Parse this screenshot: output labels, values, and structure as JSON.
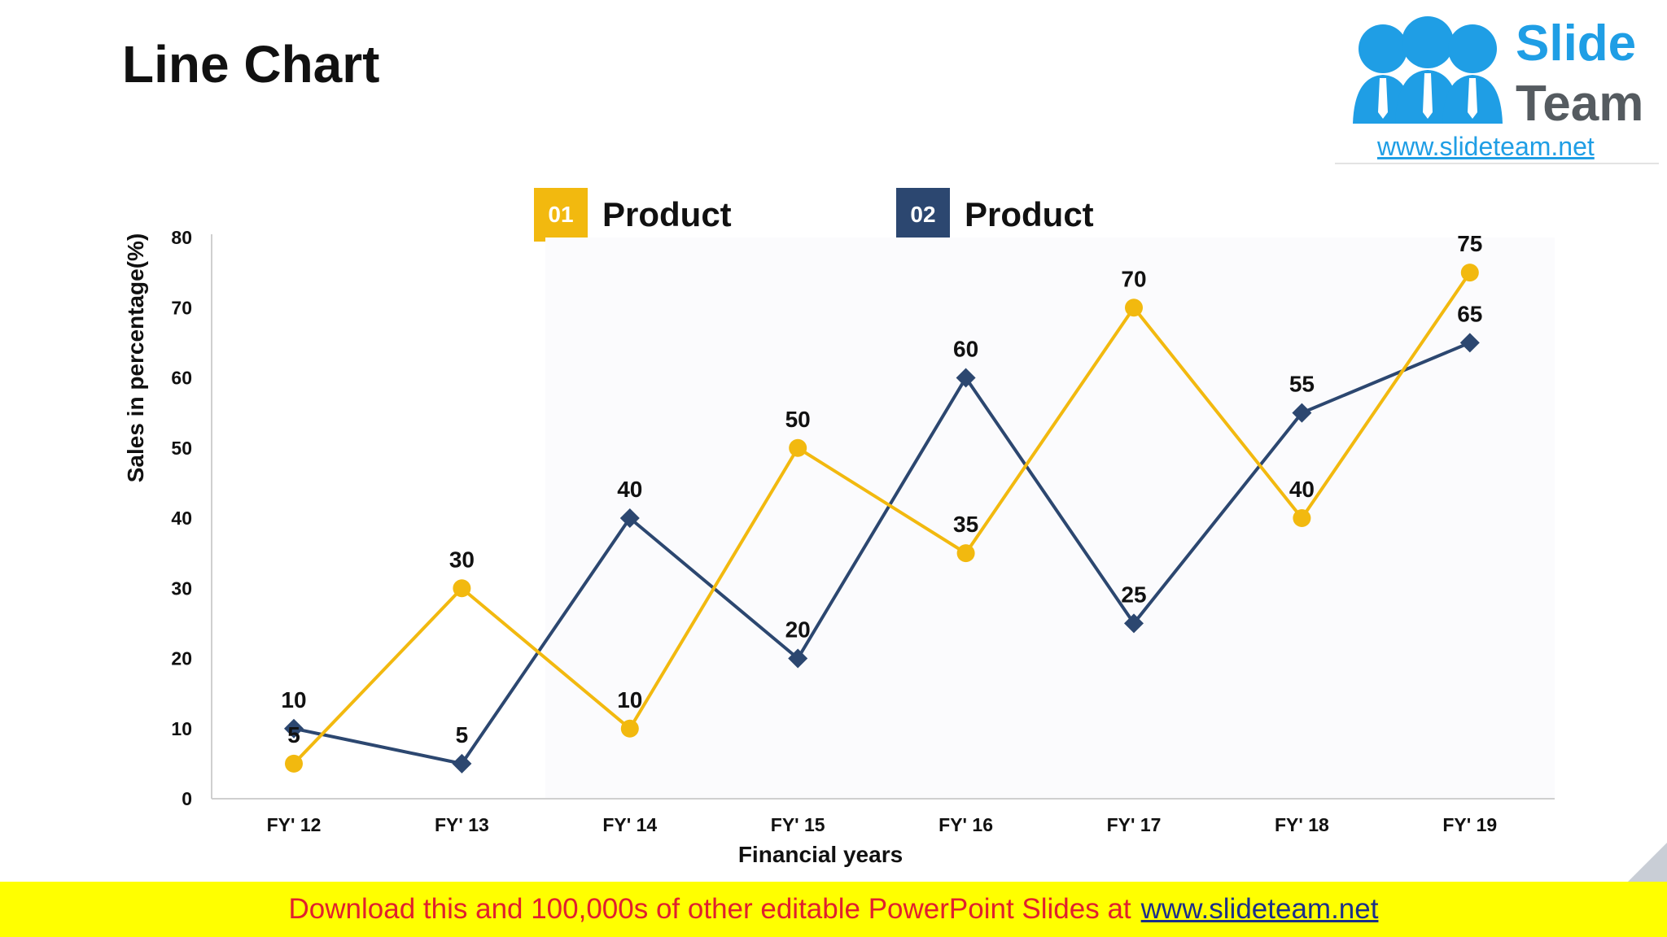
{
  "slide": {
    "title": "Line Chart"
  },
  "logo": {
    "word1": "Slide",
    "word2": "Team",
    "url": "www.slideteam.net"
  },
  "legend": [
    {
      "badge": "01",
      "label": "Product",
      "color": "#f2b90f"
    },
    {
      "badge": "02",
      "label": "Product",
      "color": "#2c4770"
    }
  ],
  "banner": {
    "text": "Download this and 100,000s of other editable PowerPoint Slides at",
    "link": "www.slideteam.net"
  },
  "chart_data": {
    "type": "line",
    "title": "",
    "categories": [
      "FY' 12",
      "FY' 13",
      "FY' 14",
      "FY' 15",
      "FY' 16",
      "FY' 17",
      "FY' 18",
      "FY' 19"
    ],
    "series": [
      {
        "name": "01 Product",
        "color": "#f2b90f",
        "marker": "circle",
        "values": [
          5,
          30,
          10,
          50,
          35,
          70,
          40,
          75
        ]
      },
      {
        "name": "02 Product",
        "color": "#2c4770",
        "marker": "diamond",
        "values": [
          10,
          5,
          40,
          20,
          60,
          25,
          55,
          65
        ]
      }
    ],
    "xlabel": "Financial years",
    "ylabel": "Sales in percentage(%)",
    "ylim": [
      0,
      80
    ],
    "yticks": [
      0,
      10,
      20,
      30,
      40,
      50,
      60,
      70,
      80
    ],
    "grid": false,
    "legend": "top"
  }
}
